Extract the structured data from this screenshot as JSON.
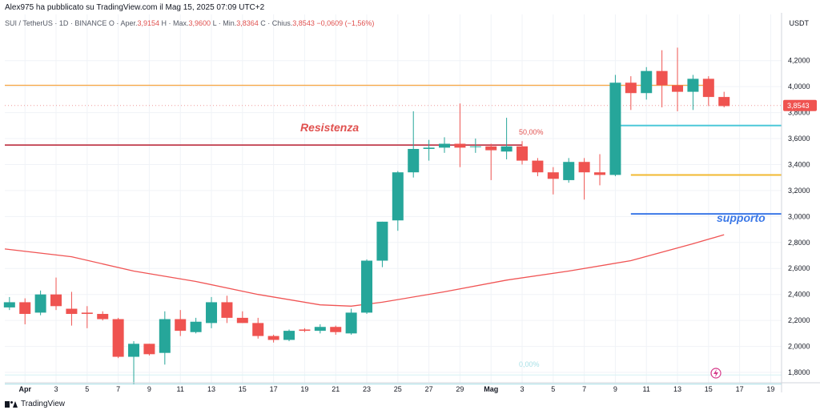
{
  "header": {
    "publisher": "Alex975 ha pubblicato su TradingView.com il Mag 15, 2025 07:09 UTC+2",
    "legend_title": "SUI / TetherUS · 1D · BINANCE",
    "legend_o": "O",
    "legend_open_label": "Aper.",
    "legend_open": "3,9154",
    "legend_high_label": "H · Max.",
    "legend_high": "3,9600",
    "legend_low_label": "L · Min.",
    "legend_low": "3,8364",
    "legend_close_label": "C · Chius.",
    "legend_close": "3,8543",
    "legend_change": "−0,0609 (−1,56%)",
    "currency": "USDT"
  },
  "footer": {
    "brand": "TradingView",
    "logo_icon": "tradingview-logo-icon"
  },
  "chart_data": {
    "type": "candlestick",
    "symbol": "SUI / TetherUS",
    "interval": "1D",
    "exchange": "BINANCE",
    "ylim": [
      1.72,
      4.42
    ],
    "y_ticks": [
      "1,8000",
      "2,0000",
      "2,2000",
      "2,4000",
      "2,6000",
      "2,8000",
      "3,0000",
      "3,2000",
      "3,4000",
      "3,6000",
      "3,8000",
      "4,0000",
      "4,2000"
    ],
    "y_tick_values": [
      1.8,
      2.0,
      2.2,
      2.4,
      2.6,
      2.8,
      3.0,
      3.2,
      3.4,
      3.6,
      3.8,
      4.0,
      4.2
    ],
    "x_ticks": [
      "Apr",
      "3",
      "5",
      "7",
      "9",
      "11",
      "13",
      "15",
      "17",
      "19",
      "21",
      "23",
      "25",
      "27",
      "29",
      "Mag",
      "3",
      "5",
      "7",
      "9",
      "11",
      "13",
      "15",
      "17",
      "19"
    ],
    "x_tick_days": [
      1,
      3,
      5,
      7,
      9,
      11,
      13,
      15,
      17,
      19,
      21,
      23,
      25,
      27,
      29,
      31,
      33,
      35,
      37,
      39,
      41,
      43,
      45,
      47,
      49
    ],
    "last_price": "3,8543",
    "last_price_value": 3.8543,
    "candles": [
      {
        "o": 2.3,
        "h": 2.38,
        "l": 2.28,
        "c": 2.34
      },
      {
        "o": 2.34,
        "h": 2.37,
        "l": 2.17,
        "c": 2.25
      },
      {
        "o": 2.26,
        "h": 2.43,
        "l": 2.24,
        "c": 2.4
      },
      {
        "o": 2.4,
        "h": 2.53,
        "l": 2.28,
        "c": 2.31
      },
      {
        "o": 2.29,
        "h": 2.42,
        "l": 2.16,
        "c": 2.25
      },
      {
        "o": 2.26,
        "h": 2.31,
        "l": 2.14,
        "c": 2.25
      },
      {
        "o": 2.25,
        "h": 2.27,
        "l": 2.2,
        "c": 2.21
      },
      {
        "o": 2.21,
        "h": 2.22,
        "l": 1.91,
        "c": 1.92
      },
      {
        "o": 1.92,
        "h": 2.04,
        "l": 1.71,
        "c": 2.02
      },
      {
        "o": 2.02,
        "h": 2.02,
        "l": 1.93,
        "c": 1.94
      },
      {
        "o": 1.95,
        "h": 2.27,
        "l": 1.86,
        "c": 2.21
      },
      {
        "o": 2.21,
        "h": 2.28,
        "l": 2.08,
        "c": 2.12
      },
      {
        "o": 2.11,
        "h": 2.22,
        "l": 2.1,
        "c": 2.19
      },
      {
        "o": 2.18,
        "h": 2.38,
        "l": 2.14,
        "c": 2.34
      },
      {
        "o": 2.34,
        "h": 2.39,
        "l": 2.18,
        "c": 2.22
      },
      {
        "o": 2.22,
        "h": 2.27,
        "l": 2.18,
        "c": 2.18
      },
      {
        "o": 2.18,
        "h": 2.22,
        "l": 2.06,
        "c": 2.08
      },
      {
        "o": 2.08,
        "h": 2.09,
        "l": 2.03,
        "c": 2.05
      },
      {
        "o": 2.05,
        "h": 2.13,
        "l": 2.04,
        "c": 2.12
      },
      {
        "o": 2.13,
        "h": 2.14,
        "l": 2.11,
        "c": 2.12
      },
      {
        "o": 2.12,
        "h": 2.17,
        "l": 2.1,
        "c": 2.15
      },
      {
        "o": 2.15,
        "h": 2.16,
        "l": 2.09,
        "c": 2.11
      },
      {
        "o": 2.1,
        "h": 2.29,
        "l": 2.09,
        "c": 2.26
      },
      {
        "o": 2.26,
        "h": 2.67,
        "l": 2.25,
        "c": 2.66
      },
      {
        "o": 2.66,
        "h": 2.96,
        "l": 2.61,
        "c": 2.96
      },
      {
        "o": 2.97,
        "h": 3.35,
        "l": 2.89,
        "c": 3.34
      },
      {
        "o": 3.34,
        "h": 3.81,
        "l": 3.3,
        "c": 3.52
      },
      {
        "o": 3.52,
        "h": 3.59,
        "l": 3.43,
        "c": 3.53
      },
      {
        "o": 3.53,
        "h": 3.61,
        "l": 3.49,
        "c": 3.56
      },
      {
        "o": 3.56,
        "h": 3.87,
        "l": 3.38,
        "c": 3.53
      },
      {
        "o": 3.54,
        "h": 3.6,
        "l": 3.49,
        "c": 3.54
      },
      {
        "o": 3.54,
        "h": 3.56,
        "l": 3.28,
        "c": 3.51
      },
      {
        "o": 3.5,
        "h": 3.76,
        "l": 3.44,
        "c": 3.54
      },
      {
        "o": 3.54,
        "h": 3.58,
        "l": 3.4,
        "c": 3.43
      },
      {
        "o": 3.43,
        "h": 3.45,
        "l": 3.31,
        "c": 3.34
      },
      {
        "o": 3.34,
        "h": 3.38,
        "l": 3.17,
        "c": 3.29
      },
      {
        "o": 3.28,
        "h": 3.45,
        "l": 3.26,
        "c": 3.42
      },
      {
        "o": 3.42,
        "h": 3.45,
        "l": 3.13,
        "c": 3.34
      },
      {
        "o": 3.34,
        "h": 3.48,
        "l": 3.24,
        "c": 3.32
      },
      {
        "o": 3.32,
        "h": 4.09,
        "l": 3.31,
        "c": 4.03
      },
      {
        "o": 4.03,
        "h": 4.08,
        "l": 3.82,
        "c": 3.95
      },
      {
        "o": 3.95,
        "h": 4.15,
        "l": 3.9,
        "c": 4.12
      },
      {
        "o": 4.12,
        "h": 4.28,
        "l": 3.84,
        "c": 4.01
      },
      {
        "o": 4.01,
        "h": 4.3,
        "l": 3.81,
        "c": 3.96
      },
      {
        "o": 3.96,
        "h": 4.09,
        "l": 3.82,
        "c": 4.06
      },
      {
        "o": 4.06,
        "h": 4.08,
        "l": 3.85,
        "c": 3.92
      },
      {
        "o": 3.92,
        "h": 3.96,
        "l": 3.84,
        "c": 3.85
      }
    ],
    "candle_start_day": 0,
    "ma": {
      "color": "#f05454",
      "points": [
        [
          -0.3,
          2.75
        ],
        [
          4,
          2.69
        ],
        [
          8,
          2.58
        ],
        [
          12,
          2.5
        ],
        [
          16,
          2.4
        ],
        [
          20,
          2.32
        ],
        [
          22,
          2.31
        ],
        [
          24,
          2.34
        ],
        [
          28,
          2.42
        ],
        [
          32,
          2.51
        ],
        [
          36,
          2.58
        ],
        [
          40,
          2.66
        ],
        [
          44,
          2.79
        ],
        [
          46,
          2.86
        ]
      ]
    },
    "horizontal_lines": [
      {
        "name": "orange-line",
        "y": 4.01,
        "x0": -0.3,
        "x1": 45,
        "color": "#f7a541",
        "width": 1.2
      },
      {
        "name": "resistance-line",
        "y": 3.55,
        "x0": -0.3,
        "x1": 33,
        "color": "#b71c2f",
        "width": 1.4
      },
      {
        "name": "cyan-line",
        "y": 3.7,
        "x0": 39,
        "x1": 50,
        "color": "#4dc8d9",
        "width": 2
      },
      {
        "name": "yellow-line",
        "y": 3.32,
        "x0": 40,
        "x1": 50,
        "color": "#f2b930",
        "width": 2
      },
      {
        "name": "blue-line",
        "y": 3.02,
        "x0": 40,
        "x1": 50,
        "color": "#3b78e7",
        "width": 2
      },
      {
        "name": "fib-zero-line",
        "y": 1.71,
        "x0": -0.3,
        "x1": 50,
        "color": "#a8e0e6",
        "width": 1
      },
      {
        "name": "fib-band-line",
        "y": 1.78,
        "x0": -0.3,
        "x1": 50,
        "color": "#d6f1f4",
        "width": 1
      }
    ],
    "annotations": {
      "resistance_label": "Resistenza",
      "support_label": "supporto",
      "fib_50": "50,00%",
      "fib_0": "0,00%"
    },
    "colors": {
      "up": "#26a69a",
      "down": "#ef5350",
      "grid": "#f0f3f7",
      "axis_text": "#131722",
      "last_price": "#ef5350"
    },
    "event_icon": "lightning-icon"
  }
}
